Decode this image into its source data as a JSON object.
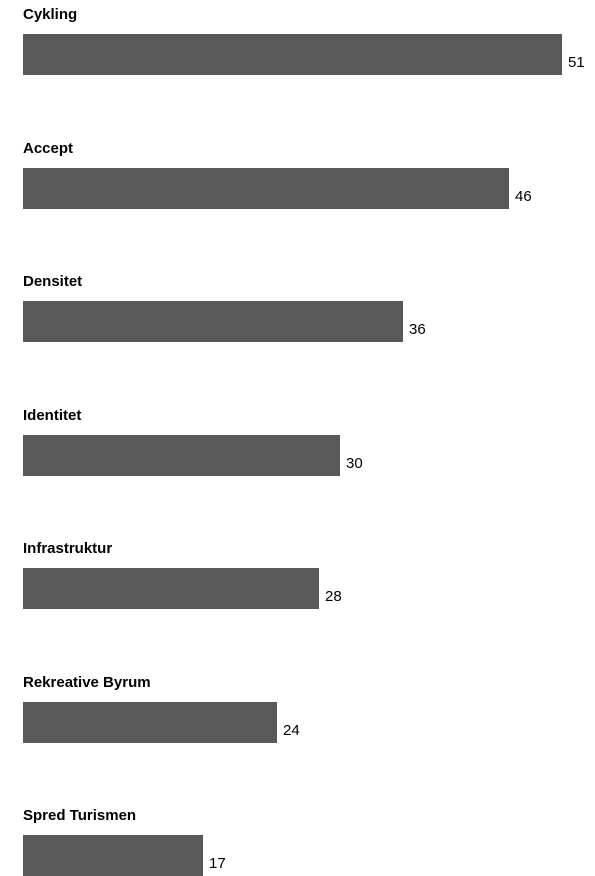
{
  "chart_data": {
    "type": "bar",
    "orientation": "horizontal",
    "categories": [
      "Cykling",
      "Accept",
      "Densitet",
      "Identitet",
      "Infrastruktur",
      "Rekreative Byrum",
      "Spred Turismen"
    ],
    "values": [
      51,
      46,
      36,
      30,
      28,
      24,
      17
    ],
    "title": "",
    "xlabel": "",
    "ylabel": "",
    "grid": false,
    "legend": "none",
    "bar_color": "#595959",
    "data_labels": true
  }
}
